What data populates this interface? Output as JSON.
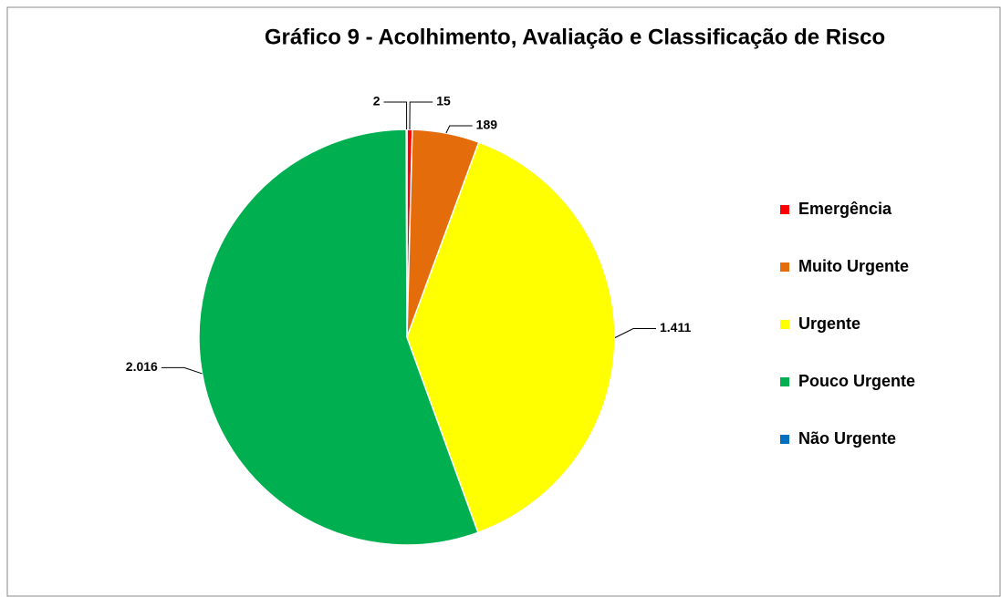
{
  "chart_data": {
    "type": "pie",
    "title": "Gráfico 9 - Acolhimento, Avaliação e Classificação de Risco",
    "categories": [
      "Emergência",
      "Muito Urgente",
      "Urgente",
      "Pouco Urgente",
      "Não Urgente"
    ],
    "values": [
      15,
      189,
      1411,
      2016,
      2
    ],
    "value_labels": [
      "15",
      "189",
      "1.411",
      "2.016",
      "2"
    ],
    "colors": [
      "#ff0000",
      "#e46c0a",
      "#ffff00",
      "#00b050",
      "#0070c0"
    ],
    "legend": "right"
  }
}
